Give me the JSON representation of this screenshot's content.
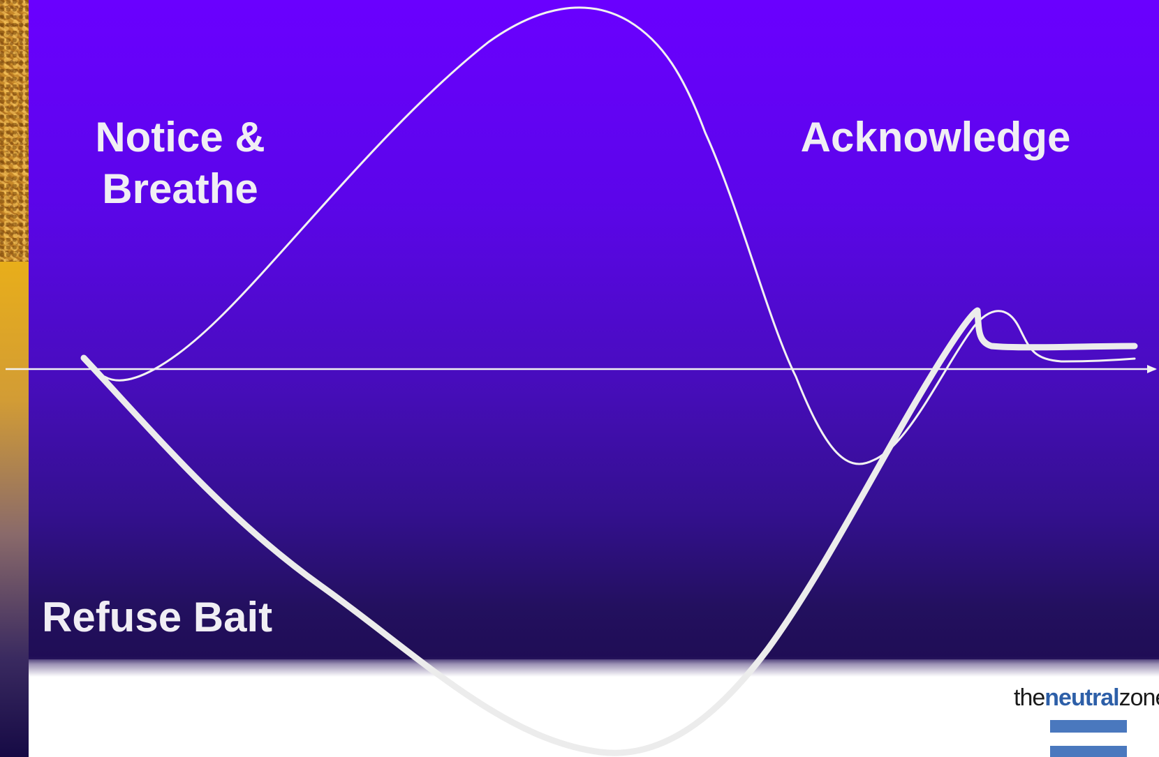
{
  "labels": {
    "notice": "Notice & Breathe",
    "acknowledge": "Acknowledge",
    "refuse": "Refuse Bait"
  },
  "logo": {
    "prefix": "the",
    "highlight": "neutral",
    "suffix": "zone"
  },
  "colors": {
    "background_top": "#6a00ff",
    "background_bottom": "#1f0d55",
    "curve": "#f2f2f2",
    "logo_blue": "#2d5fa8"
  }
}
